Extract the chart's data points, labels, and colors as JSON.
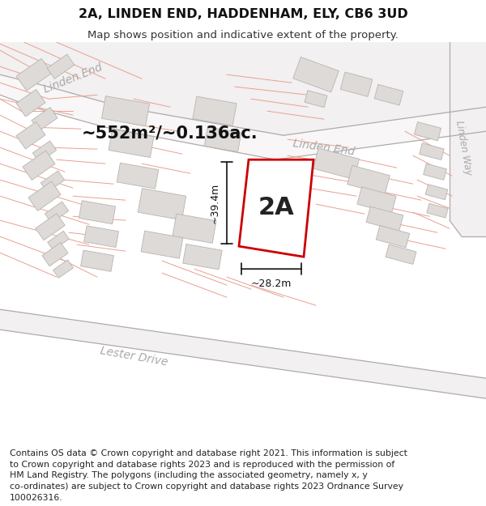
{
  "title": "2A, LINDEN END, HADDENHAM, ELY, CB6 3UD",
  "subtitle": "Map shows position and indicative extent of the property.",
  "footer": "Contains OS data © Crown copyright and database right 2021. This information is subject\nto Crown copyright and database rights 2023 and is reproduced with the permission of\nHM Land Registry. The polygons (including the associated geometry, namely x, y\nco-ordinates) are subject to Crown copyright and database rights 2023 Ordnance Survey\n100026316.",
  "area_label": "~552m²/~0.136ac.",
  "plot_label": "2A",
  "dim_width_label": "~28.2m",
  "dim_height_label": "~39.4m",
  "map_bg": "#f7f5f5",
  "road_fill": "#ffffff",
  "road_edge_pink": "#e8a090",
  "road_edge_gray": "#b0aaaa",
  "building_fill": "#dddad8",
  "building_edge": "#b8b4b0",
  "plot_fill": "#ffffff",
  "plot_edge": "#cc0000",
  "dim_color": "#222222",
  "road_label_color": "#aaaaaa",
  "title_fontsize": 11.5,
  "subtitle_fontsize": 9.5,
  "footer_fontsize": 7.8,
  "area_fontsize": 15,
  "plot_label_fontsize": 22,
  "dim_fontsize": 9,
  "road_label_fontsize": 10
}
